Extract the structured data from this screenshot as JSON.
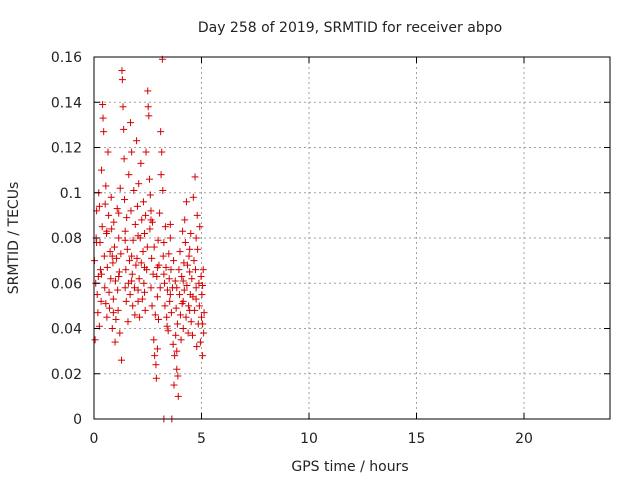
{
  "chart_data": {
    "type": "scatter",
    "title": "Day 258 of 2019, SRMTID for receiver abpo",
    "xlabel": "GPS time / hours",
    "ylabel": "SRMTID / TECUs",
    "xlim": [
      0,
      24
    ],
    "ylim": [
      0,
      0.16
    ],
    "x_ticks": [
      0,
      5,
      10,
      15,
      20
    ],
    "x_tick_labels": [
      "0",
      "5",
      "10",
      "15",
      "20"
    ],
    "y_ticks": [
      0,
      0.02,
      0.04,
      0.06,
      0.08,
      0.1,
      0.12,
      0.14,
      0.16
    ],
    "y_tick_labels": [
      "0",
      "0.02",
      "0.04",
      "0.06",
      "0.08",
      "0.1",
      "0.12",
      "0.14",
      "0.16"
    ],
    "grid": true,
    "marker": "+",
    "colors": {
      "series": "#d40000",
      "grid": "#a0a0a0",
      "axes": "#000000"
    },
    "series": [
      {
        "points": [
          [
            0.02,
            0.07
          ],
          [
            0.05,
            0.035
          ],
          [
            0.08,
            0.06
          ],
          [
            0.1,
            0.08
          ],
          [
            0.12,
            0.092
          ],
          [
            0.15,
            0.055
          ],
          [
            0.18,
            0.047
          ],
          [
            0.2,
            0.063
          ],
          [
            0.22,
            0.1
          ],
          [
            0.25,
            0.041
          ],
          [
            0.28,
            0.078
          ],
          [
            0.3,
            0.066
          ],
          [
            0.33,
            0.052
          ],
          [
            0.35,
            0.11
          ],
          [
            0.38,
            0.085
          ],
          [
            0.4,
            0.139
          ],
          [
            0.42,
            0.133
          ],
          [
            0.45,
            0.127
          ],
          [
            0.48,
            0.072
          ],
          [
            0.5,
            0.058
          ],
          [
            0.52,
            0.095
          ],
          [
            0.55,
            0.103
          ],
          [
            0.58,
            0.082
          ],
          [
            0.6,
            0.045
          ],
          [
            0.62,
            0.067
          ],
          [
            0.65,
            0.118
          ],
          [
            0.68,
            0.09
          ],
          [
            0.7,
            0.056
          ],
          [
            0.72,
            0.049
          ],
          [
            0.75,
            0.074
          ],
          [
            0.78,
            0.062
          ],
          [
            0.8,
            0.098
          ],
          [
            0.82,
            0.084
          ],
          [
            0.85,
            0.04
          ],
          [
            0.88,
            0.069
          ],
          [
            0.9,
            0.053
          ],
          [
            0.92,
            0.087
          ],
          [
            0.95,
            0.076
          ],
          [
            0.98,
            0.034
          ],
          [
            1.0,
            0.061
          ],
          [
            1.02,
            0.044
          ],
          [
            1.05,
            0.071
          ],
          [
            1.08,
            0.093
          ],
          [
            1.1,
            0.057
          ],
          [
            1.12,
            0.048
          ],
          [
            1.15,
            0.08
          ],
          [
            1.18,
            0.065
          ],
          [
            1.2,
            0.038
          ],
          [
            1.22,
            0.102
          ],
          [
            1.25,
            0.073
          ],
          [
            1.28,
            0.026
          ],
          [
            1.3,
            0.154
          ],
          [
            1.32,
            0.15
          ],
          [
            1.35,
            0.138
          ],
          [
            1.38,
            0.128
          ],
          [
            1.4,
            0.115
          ],
          [
            1.42,
            0.097
          ],
          [
            1.45,
            0.083
          ],
          [
            1.48,
            0.066
          ],
          [
            1.5,
            0.052
          ],
          [
            1.52,
            0.089
          ],
          [
            1.55,
            0.075
          ],
          [
            1.58,
            0.043
          ],
          [
            1.6,
            0.06
          ],
          [
            1.62,
            0.108
          ],
          [
            1.65,
            0.07
          ],
          [
            1.68,
            0.055
          ],
          [
            1.7,
            0.131
          ],
          [
            1.72,
            0.092
          ],
          [
            1.75,
            0.118
          ],
          [
            1.78,
            0.064
          ],
          [
            1.8,
            0.05
          ],
          [
            1.82,
            0.079
          ],
          [
            1.85,
            0.101
          ],
          [
            1.88,
            0.058
          ],
          [
            1.9,
            0.046
          ],
          [
            1.92,
            0.086
          ],
          [
            1.95,
            0.068
          ],
          [
            1.98,
            0.123
          ],
          [
            2.0,
            0.071
          ],
          [
            2.02,
            0.094
          ],
          [
            2.05,
            0.057
          ],
          [
            2.08,
            0.104
          ],
          [
            2.1,
            0.062
          ],
          [
            2.12,
            0.045
          ],
          [
            2.15,
            0.08
          ],
          [
            2.18,
            0.113
          ],
          [
            2.2,
            0.069
          ],
          [
            2.22,
            0.088
          ],
          [
            2.25,
            0.053
          ],
          [
            2.28,
            0.074
          ],
          [
            2.3,
            0.096
          ],
          [
            2.32,
            0.06
          ],
          [
            2.35,
            0.082
          ],
          [
            2.38,
            0.048
          ],
          [
            2.4,
            0.09
          ],
          [
            2.42,
            0.118
          ],
          [
            2.45,
            0.066
          ],
          [
            2.48,
            0.076
          ],
          [
            2.5,
            0.145
          ],
          [
            2.52,
            0.138
          ],
          [
            2.55,
            0.134
          ],
          [
            2.58,
            0.106
          ],
          [
            2.6,
            0.084
          ],
          [
            2.62,
            0.099
          ],
          [
            2.65,
            0.058
          ],
          [
            2.68,
            0.071
          ],
          [
            2.7,
            0.05
          ],
          [
            2.72,
            0.087
          ],
          [
            2.75,
            0.064
          ],
          [
            2.78,
            0.035
          ],
          [
            2.8,
            0.076
          ],
          [
            2.82,
            0.028
          ],
          [
            2.85,
            0.046
          ],
          [
            2.88,
            0.024
          ],
          [
            2.9,
            0.018
          ],
          [
            2.92,
            0.063
          ],
          [
            2.95,
            0.054
          ],
          [
            2.98,
            0.079
          ],
          [
            3.0,
            0.044
          ],
          [
            3.02,
            0.068
          ],
          [
            3.05,
            0.091
          ],
          [
            3.08,
            0.058
          ],
          [
            3.1,
            0.127
          ],
          [
            3.12,
            0.108
          ],
          [
            3.15,
            0.118
          ],
          [
            3.18,
            0.159
          ],
          [
            3.2,
            0.101
          ],
          [
            3.22,
            0.072
          ],
          [
            3.25,
            0.0
          ],
          [
            3.28,
            0.06
          ],
          [
            3.3,
            0.05
          ],
          [
            3.32,
            0.085
          ],
          [
            3.35,
            0.067
          ],
          [
            3.38,
            0.045
          ],
          [
            3.4,
            0.041
          ],
          [
            3.42,
            0.057
          ],
          [
            3.45,
            0.039
          ],
          [
            3.48,
            0.073
          ],
          [
            3.5,
            0.062
          ],
          [
            3.52,
            0.052
          ],
          [
            3.55,
            0.08
          ],
          [
            3.58,
            0.066
          ],
          [
            3.6,
            0.047
          ],
          [
            3.62,
            0.0
          ],
          [
            3.65,
            0.058
          ],
          [
            3.68,
            0.033
          ],
          [
            3.7,
            0.07
          ],
          [
            3.72,
            0.015
          ],
          [
            3.75,
            0.028
          ],
          [
            3.78,
            0.061
          ],
          [
            3.8,
            0.037
          ],
          [
            3.82,
            0.049
          ],
          [
            3.85,
            0.022
          ],
          [
            3.88,
            0.042
          ],
          [
            3.9,
            0.019
          ],
          [
            3.92,
            0.01
          ],
          [
            3.95,
            0.066
          ],
          [
            3.98,
            0.055
          ],
          [
            4.0,
            0.074
          ],
          [
            4.02,
            0.046
          ],
          [
            4.05,
            0.035
          ],
          [
            4.08,
            0.063
          ],
          [
            4.1,
            0.051
          ],
          [
            4.12,
            0.083
          ],
          [
            4.15,
            0.04
          ],
          [
            4.18,
            0.069
          ],
          [
            4.2,
            0.057
          ],
          [
            4.22,
            0.088
          ],
          [
            4.25,
            0.078
          ],
          [
            4.28,
            0.045
          ],
          [
            4.3,
            0.096
          ],
          [
            4.32,
            0.059
          ],
          [
            4.35,
            0.068
          ],
          [
            4.38,
            0.038
          ],
          [
            4.4,
            0.05
          ],
          [
            4.42,
            0.072
          ],
          [
            4.45,
            0.065
          ],
          [
            4.48,
            0.055
          ],
          [
            4.5,
            0.082
          ],
          [
            4.52,
            0.043
          ],
          [
            4.55,
            0.062
          ],
          [
            4.58,
            0.037
          ],
          [
            4.6,
            0.054
          ],
          [
            4.62,
            0.098
          ],
          [
            4.65,
            0.07
          ],
          [
            4.68,
            0.048
          ],
          [
            4.7,
            0.107
          ],
          [
            4.72,
            0.066
          ],
          [
            4.75,
            0.058
          ],
          [
            4.78,
            0.032
          ],
          [
            4.8,
            0.09
          ],
          [
            4.82,
            0.075
          ],
          [
            4.85,
            0.042
          ],
          [
            4.88,
            0.06
          ],
          [
            4.9,
            0.05
          ],
          [
            4.92,
            0.085
          ],
          [
            4.95,
            0.034
          ],
          [
            4.98,
            0.063
          ],
          [
            5.0,
            0.045
          ],
          [
            5.02,
            0.055
          ],
          [
            5.05,
            0.028
          ],
          [
            5.08,
            0.066
          ],
          [
            5.1,
            0.038
          ],
          [
            5.12,
            0.047
          ],
          [
            0.12,
            0.078
          ],
          [
            0.35,
            0.064
          ],
          [
            0.6,
            0.083
          ],
          [
            0.9,
            0.047
          ],
          [
            1.15,
            0.063
          ],
          [
            1.45,
            0.058
          ],
          [
            1.75,
            0.072
          ],
          [
            2.05,
            0.052
          ],
          [
            2.35,
            0.067
          ],
          [
            2.65,
            0.092
          ],
          [
            2.95,
            0.067
          ],
          [
            3.25,
            0.078
          ],
          [
            3.55,
            0.055
          ],
          [
            3.85,
            0.058
          ],
          [
            4.15,
            0.052
          ],
          [
            4.45,
            0.075
          ],
          [
            4.75,
            0.053
          ],
          [
            5.05,
            0.042
          ],
          [
            0.25,
            0.094
          ],
          [
            0.55,
            0.051
          ],
          [
            0.85,
            0.072
          ],
          [
            1.15,
            0.091
          ],
          [
            1.45,
            0.079
          ],
          [
            1.75,
            0.061
          ],
          [
            2.05,
            0.081
          ],
          [
            2.35,
            0.056
          ],
          [
            2.65,
            0.088
          ],
          [
            2.95,
            0.031
          ],
          [
            3.25,
            0.064
          ],
          [
            3.55,
            0.086
          ],
          [
            3.85,
            0.03
          ],
          [
            4.15,
            0.061
          ],
          [
            4.45,
            0.048
          ],
          [
            4.75,
            0.08
          ],
          [
            5.05,
            0.059
          ]
        ]
      }
    ]
  }
}
